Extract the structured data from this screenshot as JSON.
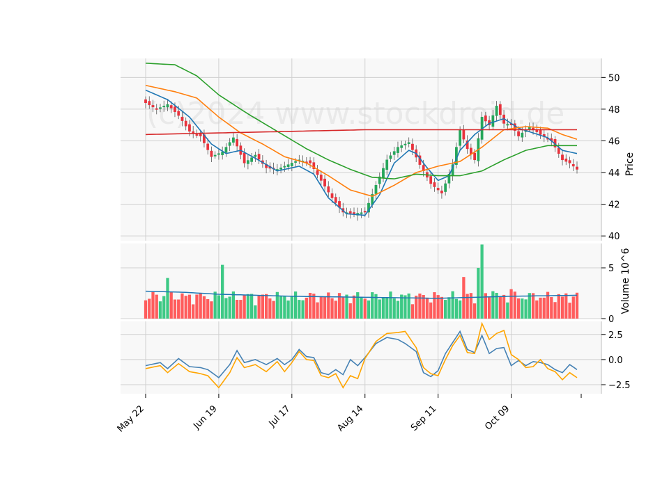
{
  "chart_data": {
    "type": "candlestick",
    "watermark": "(c)2024 www.stockdroid.de",
    "x_tick_labels": [
      "May 22",
      "Jun 19",
      "Jul 17",
      "Aug 14",
      "Sep 11",
      "Oct 09"
    ],
    "x_tick_indices": [
      0,
      20,
      40,
      60,
      80,
      100
    ],
    "num_bars": 119,
    "price_panel": {
      "ylabel": "Price",
      "ylim": [
        39.7,
        51.2
      ],
      "ticks": [
        40,
        42,
        44,
        46,
        48,
        50
      ],
      "close_anchors": [
        [
          0,
          48.4
        ],
        [
          3,
          48.0
        ],
        [
          6,
          48.3
        ],
        [
          9,
          47.6
        ],
        [
          12,
          46.6
        ],
        [
          15,
          46.3
        ],
        [
          18,
          45.0
        ],
        [
          21,
          45.3
        ],
        [
          24,
          46.2
        ],
        [
          27,
          44.6
        ],
        [
          30,
          45.1
        ],
        [
          33,
          44.3
        ],
        [
          36,
          44.2
        ],
        [
          39,
          44.5
        ],
        [
          42,
          44.8
        ],
        [
          45,
          44.6
        ],
        [
          48,
          43.5
        ],
        [
          51,
          42.4
        ],
        [
          54,
          41.5
        ],
        [
          57,
          41.4
        ],
        [
          60,
          41.5
        ],
        [
          63,
          43.2
        ],
        [
          66,
          44.8
        ],
        [
          69,
          45.6
        ],
        [
          72,
          45.9
        ],
        [
          75,
          44.5
        ],
        [
          78,
          43.3
        ],
        [
          81,
          42.7
        ],
        [
          84,
          44.5
        ],
        [
          86,
          46.7
        ],
        [
          88,
          45.5
        ],
        [
          90,
          44.8
        ],
        [
          92,
          47.5
        ],
        [
          94,
          47.0
        ],
        [
          96,
          48.2
        ],
        [
          98,
          47.1
        ],
        [
          100,
          47.0
        ],
        [
          102,
          46.3
        ],
        [
          105,
          46.9
        ],
        [
          108,
          46.4
        ],
        [
          111,
          46.0
        ],
        [
          114,
          44.8
        ],
        [
          116,
          44.6
        ],
        [
          118,
          44.2
        ]
      ],
      "overlays": [
        {
          "name": "SMA short",
          "color": "#1f77b4",
          "values": [
            [
              0,
              49.2
            ],
            [
              6,
              48.6
            ],
            [
              12,
              47.5
            ],
            [
              18,
              45.8
            ],
            [
              22,
              45.2
            ],
            [
              26,
              45.4
            ],
            [
              30,
              44.9
            ],
            [
              36,
              44.1
            ],
            [
              42,
              44.4
            ],
            [
              46,
              43.9
            ],
            [
              50,
              42.4
            ],
            [
              55,
              41.4
            ],
            [
              60,
              41.3
            ],
            [
              64,
              42.6
            ],
            [
              68,
              44.6
            ],
            [
              72,
              45.4
            ],
            [
              74,
              45.2
            ],
            [
              77,
              44.3
            ],
            [
              80,
              43.5
            ],
            [
              83,
              43.8
            ],
            [
              86,
              45.4
            ],
            [
              90,
              46.4
            ],
            [
              94,
              47.1
            ],
            [
              98,
              47.4
            ],
            [
              102,
              46.8
            ],
            [
              106,
              46.5
            ],
            [
              110,
              46.2
            ],
            [
              114,
              45.4
            ],
            [
              118,
              45.2
            ]
          ]
        },
        {
          "name": "SMA mid",
          "color": "#ff7f0e",
          "values": [
            [
              0,
              49.5
            ],
            [
              8,
              49.1
            ],
            [
              14,
              48.7
            ],
            [
              20,
              47.5
            ],
            [
              26,
              46.5
            ],
            [
              32,
              45.8
            ],
            [
              38,
              45.0
            ],
            [
              44,
              44.6
            ],
            [
              50,
              43.8
            ],
            [
              56,
              42.9
            ],
            [
              62,
              42.5
            ],
            [
              68,
              43.2
            ],
            [
              74,
              44.0
            ],
            [
              80,
              44.4
            ],
            [
              86,
              44.7
            ],
            [
              92,
              45.6
            ],
            [
              98,
              46.7
            ],
            [
              104,
              46.9
            ],
            [
              110,
              46.8
            ],
            [
              114,
              46.4
            ],
            [
              118,
              46.1
            ]
          ]
        },
        {
          "name": "SMA long",
          "color": "#2ca02c",
          "values": [
            [
              0,
              50.9
            ],
            [
              8,
              50.8
            ],
            [
              14,
              50.1
            ],
            [
              20,
              48.9
            ],
            [
              28,
              47.7
            ],
            [
              36,
              46.6
            ],
            [
              44,
              45.5
            ],
            [
              50,
              44.8
            ],
            [
              56,
              44.2
            ],
            [
              62,
              43.7
            ],
            [
              68,
              43.6
            ],
            [
              74,
              43.9
            ],
            [
              80,
              43.8
            ],
            [
              86,
              43.8
            ],
            [
              92,
              44.1
            ],
            [
              98,
              44.8
            ],
            [
              104,
              45.4
            ],
            [
              110,
              45.7
            ],
            [
              118,
              45.7
            ]
          ]
        },
        {
          "name": "SMA very long",
          "color": "#d62728",
          "values": [
            [
              0,
              46.4
            ],
            [
              20,
              46.5
            ],
            [
              40,
              46.6
            ],
            [
              60,
              46.7
            ],
            [
              80,
              46.7
            ],
            [
              100,
              46.7
            ],
            [
              118,
              46.7
            ]
          ]
        }
      ]
    },
    "volume_panel": {
      "ylabel": "Volume  10^6",
      "ylim": [
        0,
        7.4
      ],
      "ticks": [
        0,
        5
      ],
      "tall_bars": [
        [
          6,
          4.0
        ],
        [
          21,
          5.3
        ],
        [
          87,
          4.1
        ],
        [
          91,
          5.0
        ],
        [
          92,
          7.3
        ],
        [
          95,
          2.7
        ],
        [
          100,
          2.9
        ]
      ],
      "avg_line": {
        "color": "#1f77b4",
        "values": [
          [
            0,
            2.7
          ],
          [
            10,
            2.6
          ],
          [
            20,
            2.4
          ],
          [
            40,
            2.2
          ],
          [
            60,
            2.1
          ],
          [
            80,
            2.0
          ],
          [
            90,
            2.1
          ],
          [
            100,
            2.2
          ],
          [
            118,
            2.3
          ]
        ]
      }
    },
    "oscillator_panel": {
      "ylim": [
        -3.4,
        3.8
      ],
      "ticks": [
        -2.5,
        0.0,
        2.5
      ],
      "tick_labels": [
        "−2.5",
        "0.0",
        "2.5"
      ],
      "series": [
        {
          "name": "blue",
          "color": "#4682b4",
          "values": [
            [
              0,
              -0.6
            ],
            [
              4,
              -0.3
            ],
            [
              6,
              -0.9
            ],
            [
              9,
              0.1
            ],
            [
              12,
              -0.7
            ],
            [
              15,
              -0.8
            ],
            [
              17,
              -1.0
            ],
            [
              20,
              -1.8
            ],
            [
              23,
              -0.5
            ],
            [
              25,
              0.9
            ],
            [
              27,
              -0.3
            ],
            [
              30,
              0.0
            ],
            [
              33,
              -0.5
            ],
            [
              36,
              0.1
            ],
            [
              38,
              -0.5
            ],
            [
              40,
              0.0
            ],
            [
              42,
              1.0
            ],
            [
              44,
              0.3
            ],
            [
              46,
              0.2
            ],
            [
              48,
              -1.3
            ],
            [
              50,
              -1.5
            ],
            [
              52,
              -1.0
            ],
            [
              54,
              -1.5
            ],
            [
              56,
              0.0
            ],
            [
              58,
              -0.6
            ],
            [
              60,
              0.2
            ],
            [
              63,
              1.6
            ],
            [
              66,
              2.2
            ],
            [
              69,
              2.0
            ],
            [
              71,
              1.6
            ],
            [
              74,
              0.8
            ],
            [
              76,
              -1.3
            ],
            [
              78,
              -1.7
            ],
            [
              80,
              -1.1
            ],
            [
              82,
              0.6
            ],
            [
              84,
              1.7
            ],
            [
              86,
              2.8
            ],
            [
              88,
              1.0
            ],
            [
              90,
              0.7
            ],
            [
              92,
              2.4
            ],
            [
              94,
              0.6
            ],
            [
              96,
              1.1
            ],
            [
              98,
              1.2
            ],
            [
              100,
              -0.6
            ],
            [
              102,
              -0.1
            ],
            [
              104,
              -0.6
            ],
            [
              106,
              -0.2
            ],
            [
              108,
              -0.3
            ],
            [
              110,
              -0.5
            ],
            [
              112,
              -1.0
            ],
            [
              114,
              -1.3
            ],
            [
              116,
              -0.5
            ],
            [
              118,
              -1.0
            ]
          ]
        },
        {
          "name": "orange",
          "color": "#ffa500",
          "values": [
            [
              0,
              -0.9
            ],
            [
              4,
              -0.6
            ],
            [
              6,
              -1.3
            ],
            [
              9,
              -0.4
            ],
            [
              12,
              -1.2
            ],
            [
              15,
              -1.4
            ],
            [
              17,
              -1.6
            ],
            [
              20,
              -2.8
            ],
            [
              23,
              -1.3
            ],
            [
              25,
              0.2
            ],
            [
              27,
              -0.8
            ],
            [
              30,
              -0.5
            ],
            [
              33,
              -1.2
            ],
            [
              36,
              -0.2
            ],
            [
              38,
              -1.2
            ],
            [
              40,
              -0.3
            ],
            [
              42,
              0.8
            ],
            [
              44,
              0.0
            ],
            [
              46,
              -0.1
            ],
            [
              48,
              -1.6
            ],
            [
              50,
              -1.8
            ],
            [
              52,
              -1.4
            ],
            [
              54,
              -2.8
            ],
            [
              56,
              -1.6
            ],
            [
              58,
              -1.9
            ],
            [
              60,
              0.1
            ],
            [
              63,
              1.8
            ],
            [
              66,
              2.6
            ],
            [
              69,
              2.7
            ],
            [
              71,
              2.8
            ],
            [
              74,
              1.2
            ],
            [
              76,
              -0.8
            ],
            [
              78,
              -1.4
            ],
            [
              80,
              -1.6
            ],
            [
              82,
              0.0
            ],
            [
              84,
              1.4
            ],
            [
              86,
              2.4
            ],
            [
              88,
              0.7
            ],
            [
              90,
              0.6
            ],
            [
              92,
              3.6
            ],
            [
              94,
              2.0
            ],
            [
              96,
              2.6
            ],
            [
              98,
              2.9
            ],
            [
              100,
              0.5
            ],
            [
              102,
              0.0
            ],
            [
              104,
              -0.8
            ],
            [
              106,
              -0.7
            ],
            [
              108,
              0.0
            ],
            [
              110,
              -0.9
            ],
            [
              112,
              -1.2
            ],
            [
              114,
              -2.0
            ],
            [
              116,
              -1.3
            ],
            [
              118,
              -1.8
            ]
          ]
        }
      ]
    }
  }
}
